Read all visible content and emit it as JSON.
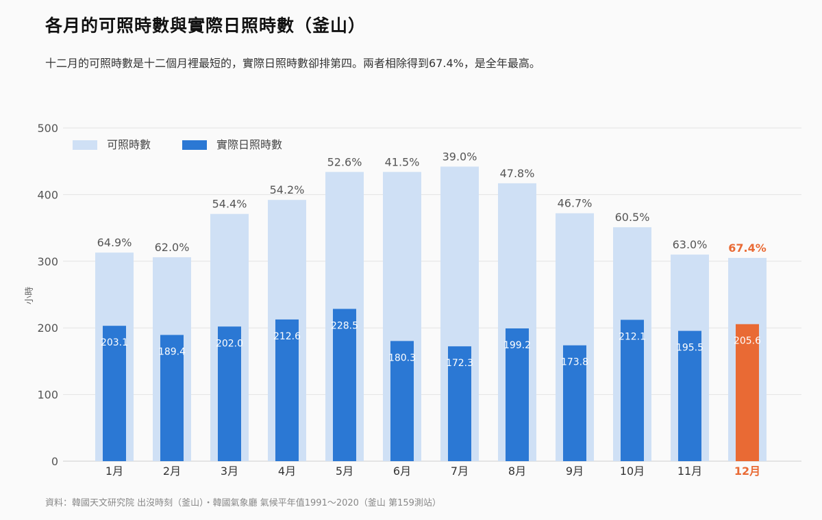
{
  "title": "各月的可照時數與實際日照時數（釜山）",
  "subtitle": "十二月的可照時數是十二個月裡最短的，實際日照時數卻排第四。兩者相除得到67.4%，是全年最高。",
  "source": "資料：韓國天文研究院 出沒時刻（釜山）・韓國氣象廳 氣候平年值1991～2020（釜山 第159測站）",
  "chart_data": {
    "type": "bar",
    "title": "各月的可照時數與實際日照時數（釜山）",
    "ylabel": "小時",
    "ylim": [
      0,
      500
    ],
    "yticks": [
      "0",
      "100",
      "200",
      "300",
      "400",
      "500"
    ],
    "categories": [
      "1月",
      "2月",
      "3月",
      "4月",
      "5月",
      "6月",
      "7月",
      "8月",
      "9月",
      "10月",
      "11月",
      "12月"
    ],
    "highlight_index": 11,
    "legend_position": "top-left",
    "grid": true,
    "series": [
      {
        "name": "可照時數",
        "color": "#cfe0f5",
        "values": [
          313,
          306,
          371,
          392,
          434,
          434,
          442,
          417,
          372,
          351,
          310,
          305
        ]
      },
      {
        "name": "實際日照時數",
        "color": "#2b78d4",
        "values": [
          203.1,
          189.4,
          202.0,
          212.6,
          228.5,
          180.3,
          172.3,
          199.2,
          173.8,
          212.1,
          195.5,
          205.6
        ]
      }
    ],
    "value_labels": [
      "203.1",
      "189.4",
      "202.0",
      "212.6",
      "228.5",
      "180.3",
      "172.3",
      "199.2",
      "173.8",
      "212.1",
      "195.5",
      "205.6"
    ],
    "ratio_labels": [
      "64.9%",
      "62.0%",
      "54.4%",
      "54.2%",
      "52.6%",
      "41.5%",
      "39.0%",
      "47.8%",
      "46.7%",
      "60.5%",
      "63.0%",
      "67.4%"
    ],
    "highlight_color": "#e96a34"
  }
}
